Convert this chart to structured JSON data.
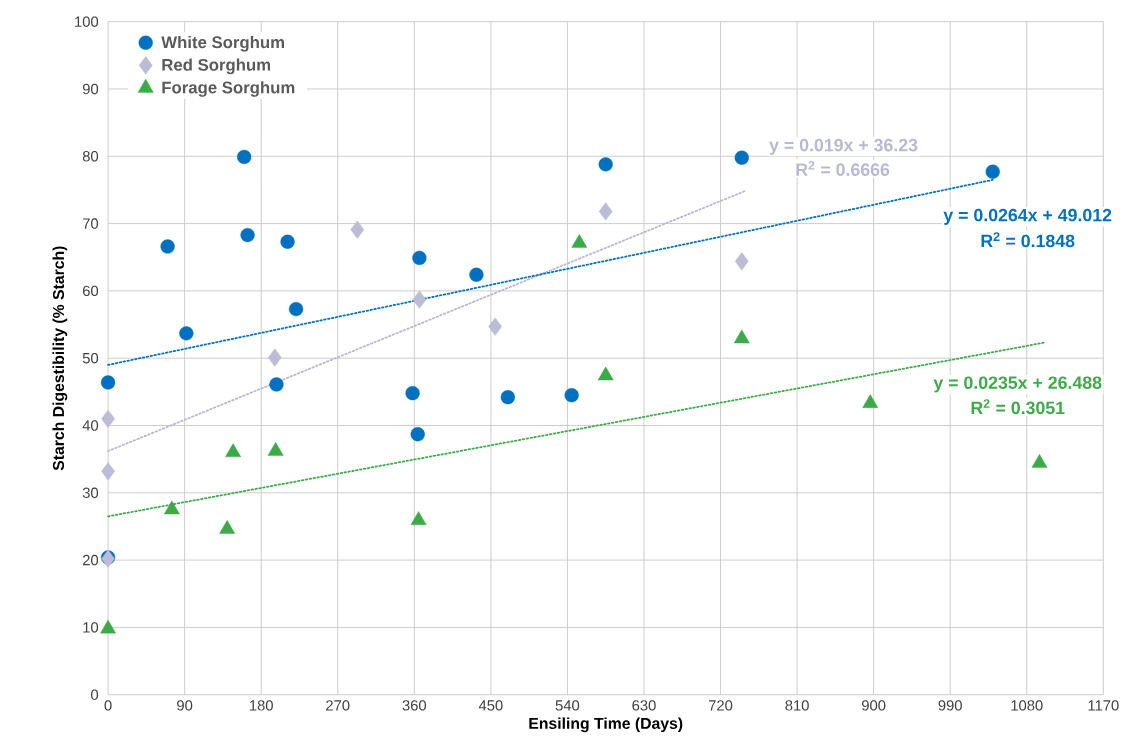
{
  "chart_data": {
    "type": "scatter",
    "xlabel": "Ensiling Time (Days)",
    "ylabel": "Starch Digestibility (% Starch)",
    "xlim": [
      0,
      1170
    ],
    "xticks": [
      0,
      90,
      180,
      270,
      360,
      450,
      540,
      630,
      720,
      810,
      900,
      990,
      1080,
      1170
    ],
    "ylim": [
      0,
      100
    ],
    "yticks": [
      0,
      10,
      20,
      30,
      40,
      50,
      60,
      70,
      80,
      90,
      100
    ],
    "grid": true,
    "legend": "top left",
    "series": [
      {
        "name": "White Sorghum",
        "color": "#0070c0",
        "marker": "circle",
        "x": [
          0,
          0,
          70,
          92,
          160,
          164,
          211,
          221,
          198,
          358,
          364,
          366,
          433,
          470,
          545,
          585,
          745,
          1040
        ],
        "values": [
          46.4,
          20.4,
          66.6,
          53.7,
          79.9,
          68.3,
          67.3,
          57.3,
          46.1,
          44.8,
          38.7,
          64.9,
          62.4,
          44.2,
          44.5,
          78.8,
          79.8,
          77.7
        ]
      },
      {
        "name": "Red Sorghum",
        "color": "#bcbcd6",
        "marker": "diamond",
        "x": [
          0,
          0,
          0,
          196,
          293,
          366,
          455,
          585,
          745
        ],
        "values": [
          41.0,
          33.2,
          20.2,
          50.1,
          69.1,
          58.7,
          54.7,
          71.8,
          64.4
        ]
      },
      {
        "name": "Forage Sorghum",
        "color": "#3daa48",
        "marker": "triangle",
        "x": [
          0,
          75,
          140,
          147,
          197,
          365,
          554,
          585,
          745,
          896,
          1095
        ],
        "values": [
          9.8,
          27.5,
          24.6,
          36.0,
          36.2,
          25.9,
          67.1,
          47.4,
          52.9,
          43.3,
          34.4
        ]
      },
      {
        "type": "line",
        "color": "#b8b8d4",
        "line_style": "dotted",
        "marker": "none",
        "x": [
          0,
          750
        ],
        "values": [
          36.2,
          74.9
        ]
      },
      {
        "type": "line",
        "color": "#0070c0",
        "line_style": "dotted",
        "marker": "none",
        "x": [
          0,
          1040
        ],
        "values": [
          49.0,
          76.5
        ]
      },
      {
        "type": "line",
        "color": "#3daa48",
        "line_style": "dotted",
        "marker": "none",
        "x": [
          0,
          1100
        ],
        "values": [
          26.5,
          52.3
        ]
      }
    ],
    "annotations": [
      "y = 0.019x + 36.23",
      "R$^{2}$ = 0.6666",
      "y = 0.0264x + 49.012",
      "R$^{2}$ = 0.1848",
      "y = 0.0235x + 26.488",
      "R$^{2}$ = 0.3051"
    ]
  }
}
